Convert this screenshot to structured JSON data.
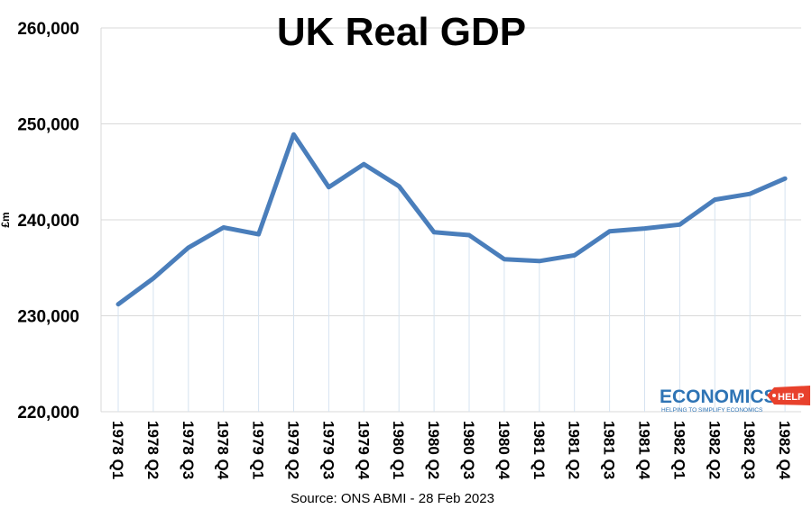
{
  "chart_data": {
    "type": "line",
    "title": "UK Real GDP",
    "ylabel": "£m",
    "xlabel": "",
    "ylim": [
      220000,
      260000
    ],
    "yticks": [
      "220,000",
      "230,000",
      "240,000",
      "250,000",
      "260,000"
    ],
    "ytick_values": [
      220000,
      230000,
      240000,
      250000,
      260000
    ],
    "grid": true,
    "categories": [
      "1978 Q1",
      "1978 Q2",
      "1978 Q3",
      "1978 Q4",
      "1979 Q1",
      "1979 Q2",
      "1979 Q3",
      "1979 Q4",
      "1980 Q1",
      "1980 Q2",
      "1980 Q3",
      "1980 Q4",
      "1981 Q1",
      "1981 Q2",
      "1981 Q3",
      "1981 Q4",
      "1982 Q1",
      "1982 Q2",
      "1982 Q3",
      "1982 Q4"
    ],
    "series": [
      {
        "color": "#4a7ebb",
        "values": [
          231200,
          233900,
          237100,
          239200,
          238500,
          248900,
          243400,
          245800,
          243500,
          238700,
          238400,
          235900,
          235700,
          236300,
          238800,
          239100,
          239500,
          242100,
          242700,
          244300
        ]
      }
    ]
  },
  "source": "Source: ONS ABMI - 28 Feb 2023",
  "logo": {
    "name": "ECONOMICS",
    "badge": "HELP",
    "tagline": "HELPING TO SIMPLIFY ECONOMICS",
    "name_color": "#2e74b5",
    "badge_color": "#e8412c"
  }
}
